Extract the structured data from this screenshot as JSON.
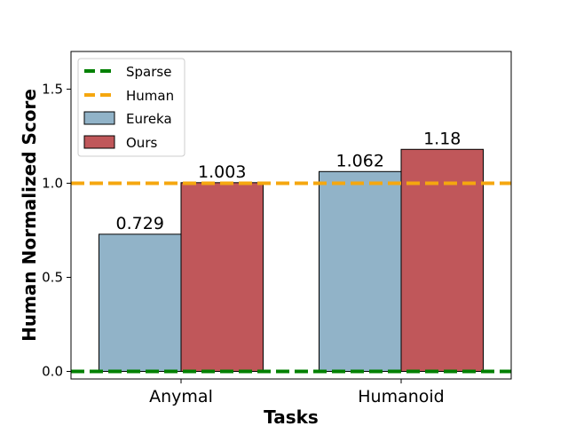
{
  "chart_data": {
    "type": "bar",
    "title": "",
    "xlabel": "Tasks",
    "ylabel": "Human Normalized Score",
    "categories": [
      "Anymal",
      "Humanoid"
    ],
    "ylim": [
      -0.04,
      1.7
    ],
    "yticks": [
      0.0,
      0.5,
      1.0,
      1.5
    ],
    "ytick_labels": [
      "0.0",
      "0.5",
      "1.0",
      "1.5"
    ],
    "series": [
      {
        "name": "Eureka",
        "values": [
          0.729,
          1.062
        ],
        "labels": [
          "0.729",
          "1.062"
        ],
        "color": "#91b3c8"
      },
      {
        "name": "Ours",
        "values": [
          1.003,
          1.18
        ],
        "labels": [
          "1.003",
          "1.18"
        ],
        "color": "#c0575a"
      }
    ],
    "reference_lines": [
      {
        "name": "Sparse",
        "value": 0.0,
        "color": "#008000",
        "style": "dashed"
      },
      {
        "name": "Human",
        "value": 1.0,
        "color": "#f5a70f",
        "style": "dashed"
      }
    ],
    "legend": {
      "position": "top-left",
      "entries": [
        {
          "label": "Sparse",
          "kind": "line",
          "color": "#008000"
        },
        {
          "label": "Human",
          "kind": "line",
          "color": "#f5a70f"
        },
        {
          "label": "Eureka",
          "kind": "patch",
          "color": "#91b3c8"
        },
        {
          "label": "Ours",
          "kind": "patch",
          "color": "#c0575a"
        }
      ]
    },
    "grid": false
  }
}
